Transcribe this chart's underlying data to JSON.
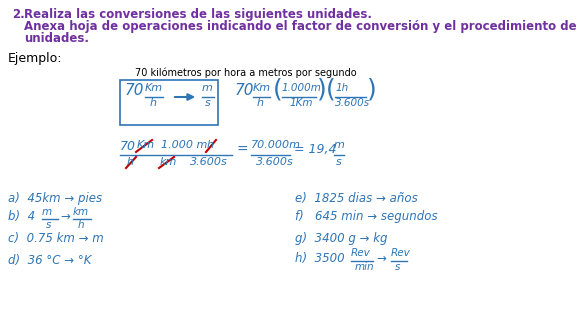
{
  "purple": "#7030A0",
  "blue": "#2E75B6",
  "red": "#C00000",
  "black": "#000000",
  "white": "#FFFFFF",
  "bg": "#FFFFFF",
  "title_line1": "Realiza las conversiones de las siguientes unidades.",
  "subtitle_line1": "Anexa hoja de operaciones indicando el factor de conversión y el procedimiento de eliminación de",
  "subtitle_line2": "unidades.",
  "ejemplo": "Ejemplo:",
  "desc": "70 kilómetros por hora a metros por segundo",
  "items_left_a": "a)  45km → pies",
  "items_left_c": "c)  0.75 km → m",
  "items_left_d": "d)  36 °C → °K",
  "items_right_e": "e)  1825 dias → años",
  "items_right_f": "f)   645 min → segundos",
  "items_right_g": "g)  3400 g → kg"
}
